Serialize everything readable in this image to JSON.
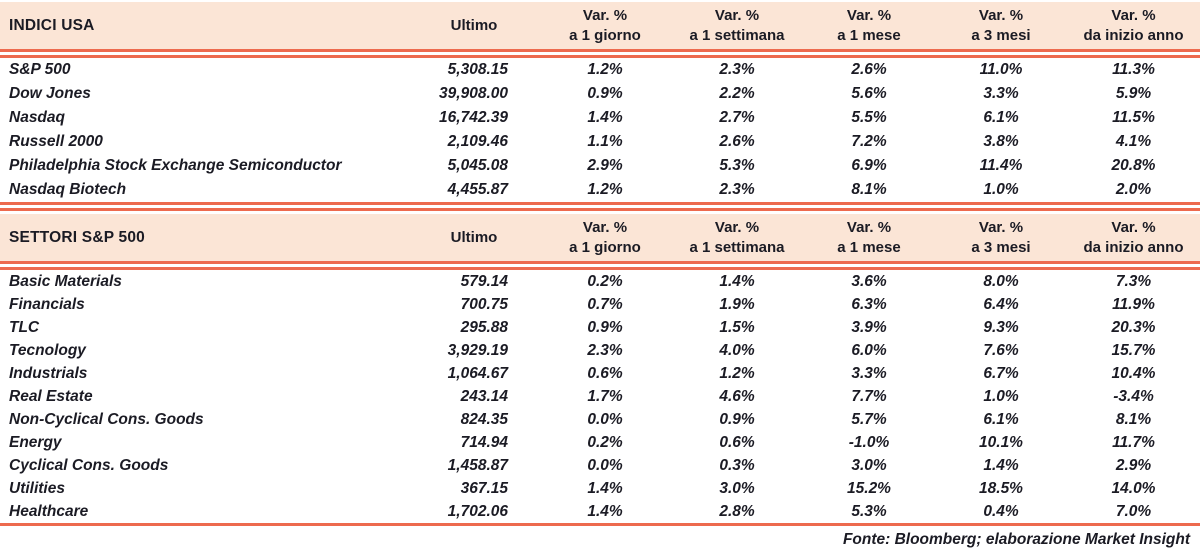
{
  "header_labels": {
    "ultimo": "Ultimo",
    "var_line1": "Var. %",
    "periods": [
      "a 1 giorno",
      "a 1 settimana",
      "a 1 mese",
      "a 3 mesi",
      "da inizio anno"
    ]
  },
  "chart_data": [
    {
      "type": "table",
      "title": "INDICI USA",
      "columns": [
        "INDICI USA",
        "Ultimo",
        "Var. % a 1 giorno",
        "Var. % a 1 settimana",
        "Var. % a 1 mese",
        "Var. % a 3 mesi",
        "Var. % da inizio anno"
      ],
      "rows": [
        {
          "name": "S&P 500",
          "ultimo": "5,308.15",
          "pct": [
            "1.2%",
            "2.3%",
            "2.6%",
            "11.0%",
            "11.3%"
          ]
        },
        {
          "name": "Dow Jones",
          "ultimo": "39,908.00",
          "pct": [
            "0.9%",
            "2.2%",
            "5.6%",
            "3.3%",
            "5.9%"
          ]
        },
        {
          "name": "Nasdaq",
          "ultimo": "16,742.39",
          "pct": [
            "1.4%",
            "2.7%",
            "5.5%",
            "6.1%",
            "11.5%"
          ]
        },
        {
          "name": "Russell 2000",
          "ultimo": "2,109.46",
          "pct": [
            "1.1%",
            "2.6%",
            "7.2%",
            "3.8%",
            "4.1%"
          ]
        },
        {
          "name": "Philadelphia Stock Exchange Semiconductor",
          "ultimo": "5,045.08",
          "pct": [
            "2.9%",
            "5.3%",
            "6.9%",
            "11.4%",
            "20.8%"
          ]
        },
        {
          "name": "Nasdaq Biotech",
          "ultimo": "4,455.87",
          "pct": [
            "1.2%",
            "2.3%",
            "8.1%",
            "1.0%",
            "2.0%"
          ]
        }
      ]
    },
    {
      "type": "table",
      "title": "SETTORI S&P 500",
      "columns": [
        "SETTORI S&P 500",
        "Ultimo",
        "Var. % a 1 giorno",
        "Var. % a 1 settimana",
        "Var. % a 1 mese",
        "Var. % a 3 mesi",
        "Var. % da inizio anno"
      ],
      "rows": [
        {
          "name": "Basic Materials",
          "ultimo": "579.14",
          "pct": [
            "0.2%",
            "1.4%",
            "3.6%",
            "8.0%",
            "7.3%"
          ]
        },
        {
          "name": "Financials",
          "ultimo": "700.75",
          "pct": [
            "0.7%",
            "1.9%",
            "6.3%",
            "6.4%",
            "11.9%"
          ]
        },
        {
          "name": "TLC",
          "ultimo": "295.88",
          "pct": [
            "0.9%",
            "1.5%",
            "3.9%",
            "9.3%",
            "20.3%"
          ]
        },
        {
          "name": "Tecnology",
          "ultimo": "3,929.19",
          "pct": [
            "2.3%",
            "4.0%",
            "6.0%",
            "7.6%",
            "15.7%"
          ]
        },
        {
          "name": "Industrials",
          "ultimo": "1,064.67",
          "pct": [
            "0.6%",
            "1.2%",
            "3.3%",
            "6.7%",
            "10.4%"
          ]
        },
        {
          "name": "Real Estate",
          "ultimo": "243.14",
          "pct": [
            "1.7%",
            "4.6%",
            "7.7%",
            "1.0%",
            "-3.4%"
          ]
        },
        {
          "name": "Non-Cyclical Cons. Goods",
          "ultimo": "824.35",
          "pct": [
            "0.0%",
            "0.9%",
            "5.7%",
            "6.1%",
            "8.1%"
          ]
        },
        {
          "name": "Energy",
          "ultimo": "714.94",
          "pct": [
            "0.2%",
            "0.6%",
            "-1.0%",
            "10.1%",
            "11.7%"
          ]
        },
        {
          "name": "Cyclical Cons. Goods",
          "ultimo": "1,458.87",
          "pct": [
            "0.0%",
            "0.3%",
            "3.0%",
            "1.4%",
            "2.9%"
          ]
        },
        {
          "name": "Utilities",
          "ultimo": "367.15",
          "pct": [
            "1.4%",
            "3.0%",
            "15.2%",
            "18.5%",
            "14.0%"
          ]
        },
        {
          "name": "Healthcare",
          "ultimo": "1,702.06",
          "pct": [
            "1.4%",
            "2.8%",
            "5.3%",
            "0.4%",
            "7.0%"
          ]
        }
      ]
    }
  ],
  "footer": {
    "source": "Fonte: Bloomberg; elaborazione Market Insight"
  },
  "colors": {
    "header_bg": "#FBE5D6",
    "rule": "#ED6A4E",
    "ink": "#1B1B24"
  }
}
